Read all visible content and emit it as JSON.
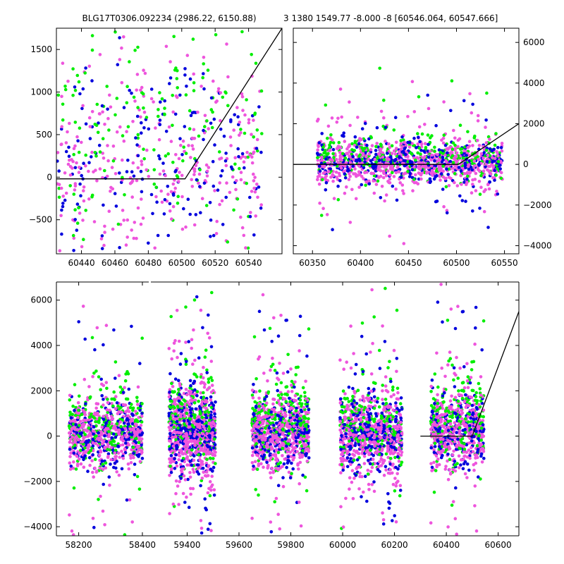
{
  "titles": {
    "left": "BLG17T0306.092234 (2986.22, 6150.88)",
    "right": "3 1380 1549.77 -8.000 -8 [60546.064, 60547.666]"
  },
  "colors": {
    "green": "#00ee00",
    "blue": "#0000dd",
    "magenta": "#ee55dd",
    "model": "#000000"
  },
  "chart_data": [
    {
      "id": "zoom-left",
      "type": "scatter",
      "xlim": [
        60425,
        60560
      ],
      "ylim": [
        -900,
        1750
      ],
      "xticks": [
        60440,
        60460,
        60480,
        60500,
        60520,
        60540
      ],
      "yticks": [
        -500,
        0,
        500,
        1000,
        1500
      ],
      "model_line": [
        [
          60425,
          -20
        ],
        [
          60502,
          -20
        ],
        [
          60560,
          1750
        ]
      ],
      "clusters": [
        {
          "x_range": [
            60425,
            60548
          ],
          "y_mean": 150,
          "y_sd": 600,
          "n": 700
        }
      ]
    },
    {
      "id": "zoom-right",
      "type": "scatter",
      "yaxis_side": "right",
      "xlim": [
        60330,
        60565
      ],
      "ylim": [
        -4400,
        6700
      ],
      "xticks": [
        60350,
        60400,
        60450,
        60500,
        60550
      ],
      "yticks": [
        -4000,
        -2000,
        0,
        2000,
        4000,
        6000
      ],
      "model_line": [
        [
          60330,
          0
        ],
        [
          60502,
          0
        ],
        [
          60565,
          2000
        ]
      ],
      "clusters": [
        {
          "x_range": [
            60355,
            60548
          ],
          "y_mean": 100,
          "y_sd": 500,
          "n": 1400
        }
      ]
    },
    {
      "id": "full-lightcurve",
      "type": "scatter",
      "broken_x_axis": true,
      "ylim": [
        -4400,
        6800
      ],
      "yticks": [
        -4000,
        -2000,
        0,
        2000,
        4000,
        6000
      ],
      "segments": [
        {
          "xlim": [
            58130,
            58420
          ],
          "xticks": [
            58200,
            58400
          ]
        },
        {
          "xlim": [
            59260,
            60680
          ],
          "xticks": [
            59400,
            59600,
            59800,
            60000,
            60200,
            60400,
            60600
          ]
        }
      ],
      "model_line": [
        [
          60300,
          0
        ],
        [
          60500,
          0
        ],
        [
          60680,
          5500
        ]
      ],
      "clusters": [
        {
          "x_range": [
            58170,
            58400
          ],
          "y_mean": 50,
          "y_sd": 700,
          "n": 900
        },
        {
          "x_range": [
            59330,
            59510
          ],
          "y_mean": 200,
          "y_sd": 900,
          "n": 1100
        },
        {
          "x_range": [
            59650,
            59870
          ],
          "y_mean": 150,
          "y_sd": 750,
          "n": 1000
        },
        {
          "x_range": [
            59990,
            60230
          ],
          "y_mean": 100,
          "y_sd": 800,
          "n": 1000
        },
        {
          "x_range": [
            60340,
            60545
          ],
          "y_mean": 200,
          "y_sd": 800,
          "n": 800
        }
      ]
    }
  ]
}
